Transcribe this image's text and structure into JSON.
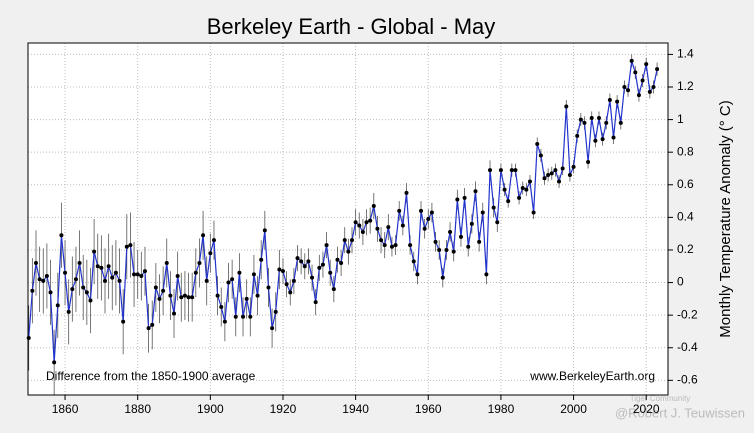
{
  "chart_data": {
    "type": "line",
    "title": "Berkeley Earth - Global - May",
    "y_label": "Monthly Temperature Anomaly (° C)",
    "annotations": [
      "Difference from the 1850-1900 average",
      "www.BerkeleyEarth.org"
    ],
    "watermark": [
      "Tiger Community",
      "@Robert J. Teuwissen"
    ],
    "x": [
      1850,
      1851,
      1852,
      1853,
      1854,
      1855,
      1856,
      1857,
      1858,
      1859,
      1860,
      1861,
      1862,
      1863,
      1864,
      1865,
      1866,
      1867,
      1868,
      1869,
      1870,
      1871,
      1872,
      1873,
      1874,
      1875,
      1876,
      1877,
      1878,
      1879,
      1880,
      1881,
      1882,
      1883,
      1884,
      1885,
      1886,
      1887,
      1888,
      1889,
      1890,
      1891,
      1892,
      1893,
      1894,
      1895,
      1896,
      1897,
      1898,
      1899,
      1900,
      1901,
      1902,
      1903,
      1904,
      1905,
      1906,
      1907,
      1908,
      1909,
      1910,
      1911,
      1912,
      1913,
      1914,
      1915,
      1916,
      1917,
      1918,
      1919,
      1920,
      1921,
      1922,
      1923,
      1924,
      1925,
      1926,
      1927,
      1928,
      1929,
      1930,
      1931,
      1932,
      1933,
      1934,
      1935,
      1936,
      1937,
      1938,
      1939,
      1940,
      1941,
      1942,
      1943,
      1944,
      1945,
      1946,
      1947,
      1948,
      1949,
      1950,
      1951,
      1952,
      1953,
      1954,
      1955,
      1956,
      1957,
      1958,
      1959,
      1960,
      1961,
      1962,
      1963,
      1964,
      1965,
      1966,
      1967,
      1968,
      1969,
      1970,
      1971,
      1972,
      1973,
      1974,
      1975,
      1976,
      1977,
      1978,
      1979,
      1980,
      1981,
      1982,
      1983,
      1984,
      1985,
      1986,
      1987,
      1988,
      1989,
      1990,
      1991,
      1992,
      1993,
      1994,
      1995,
      1996,
      1997,
      1998,
      1999,
      2000,
      2001,
      2002,
      2003,
      2004,
      2005,
      2006,
      2007,
      2008,
      2009,
      2010,
      2011,
      2012,
      2013,
      2014,
      2015,
      2016,
      2017,
      2018,
      2019,
      2020,
      2021,
      2022,
      2023
    ],
    "series": [
      {
        "color": "#2233cc",
        "values": [
          -0.34,
          -0.05,
          0.12,
          0.02,
          0.01,
          0.04,
          -0.06,
          -0.49,
          -0.14,
          0.29,
          0.06,
          -0.18,
          -0.04,
          0.02,
          0.12,
          -0.03,
          -0.06,
          -0.11,
          0.19,
          0.1,
          0.09,
          0.01,
          0.1,
          0.03,
          0.06,
          0.01,
          -0.24,
          0.22,
          0.23,
          0.05,
          0.05,
          0.04,
          0.07,
          -0.28,
          -0.26,
          -0.03,
          -0.1,
          -0.05,
          0.12,
          -0.08,
          -0.19,
          0.04,
          -0.09,
          -0.08,
          -0.09,
          -0.09,
          0.06,
          0.12,
          0.29,
          0.01,
          0.18,
          0.26,
          -0.08,
          -0.15,
          -0.24,
          0.0,
          0.02,
          -0.21,
          0.06,
          -0.21,
          -0.1,
          -0.21,
          0.05,
          -0.08,
          0.14,
          0.32,
          -0.03,
          -0.28,
          -0.18,
          0.08,
          0.07,
          -0.01,
          -0.06,
          0.01,
          0.15,
          0.13,
          0.1,
          0.13,
          0.03,
          -0.12,
          0.09,
          0.11,
          0.23,
          0.06,
          -0.04,
          0.14,
          0.12,
          0.26,
          0.19,
          0.26,
          0.37,
          0.35,
          0.31,
          0.37,
          0.38,
          0.47,
          0.33,
          0.26,
          0.23,
          0.34,
          0.22,
          0.23,
          0.44,
          0.35,
          0.55,
          0.23,
          0.13,
          0.05,
          0.44,
          0.33,
          0.39,
          0.43,
          0.25,
          0.2,
          0.03,
          0.2,
          0.31,
          0.19,
          0.51,
          0.28,
          0.52,
          0.22,
          0.36,
          0.56,
          0.25,
          0.43,
          0.05,
          0.69,
          0.46,
          0.37,
          0.69,
          0.57,
          0.5,
          0.69,
          0.69,
          0.52,
          0.58,
          0.57,
          0.62,
          0.43,
          0.85,
          0.78,
          0.64,
          0.66,
          0.67,
          0.69,
          0.62,
          0.7,
          1.08,
          0.66,
          0.71,
          0.9,
          1.0,
          0.98,
          0.74,
          1.01,
          0.87,
          1.01,
          0.88,
          0.98,
          1.12,
          0.89,
          1.11,
          0.98,
          1.2,
          1.18,
          1.36,
          1.29,
          1.15,
          1.24,
          1.34,
          1.17,
          1.2,
          1.31
        ],
        "errors": [
          0.2,
          0.2,
          0.2,
          0.2,
          0.2,
          0.2,
          0.2,
          0.2,
          0.2,
          0.2,
          0.2,
          0.2,
          0.2,
          0.2,
          0.2,
          0.2,
          0.2,
          0.2,
          0.2,
          0.2,
          0.2,
          0.2,
          0.2,
          0.2,
          0.2,
          0.2,
          0.2,
          0.2,
          0.2,
          0.2,
          0.15,
          0.15,
          0.15,
          0.15,
          0.15,
          0.15,
          0.15,
          0.15,
          0.15,
          0.15,
          0.15,
          0.15,
          0.15,
          0.15,
          0.15,
          0.15,
          0.15,
          0.15,
          0.15,
          0.15,
          0.12,
          0.12,
          0.12,
          0.12,
          0.12,
          0.12,
          0.12,
          0.12,
          0.12,
          0.12,
          0.12,
          0.12,
          0.12,
          0.12,
          0.12,
          0.12,
          0.12,
          0.12,
          0.12,
          0.12,
          0.08,
          0.08,
          0.08,
          0.08,
          0.08,
          0.08,
          0.08,
          0.08,
          0.08,
          0.08,
          0.08,
          0.08,
          0.08,
          0.08,
          0.08,
          0.08,
          0.08,
          0.08,
          0.08,
          0.08,
          0.08,
          0.08,
          0.08,
          0.08,
          0.08,
          0.08,
          0.08,
          0.08,
          0.08,
          0.08,
          0.06,
          0.06,
          0.06,
          0.06,
          0.06,
          0.06,
          0.06,
          0.06,
          0.06,
          0.06,
          0.06,
          0.06,
          0.06,
          0.06,
          0.06,
          0.06,
          0.06,
          0.06,
          0.06,
          0.06,
          0.06,
          0.06,
          0.06,
          0.06,
          0.06,
          0.06,
          0.06,
          0.06,
          0.06,
          0.06,
          0.04,
          0.04,
          0.04,
          0.04,
          0.04,
          0.04,
          0.04,
          0.04,
          0.04,
          0.04,
          0.04,
          0.04,
          0.04,
          0.04,
          0.04,
          0.04,
          0.04,
          0.04,
          0.04,
          0.04,
          0.04,
          0.04,
          0.04,
          0.04,
          0.04,
          0.04,
          0.04,
          0.04,
          0.04,
          0.04,
          0.04,
          0.04,
          0.04,
          0.04,
          0.04,
          0.04,
          0.04,
          0.04,
          0.04,
          0.04,
          0.04,
          0.04,
          0.04,
          0.04
        ]
      }
    ],
    "xlim": [
      1849.8,
      2026
    ],
    "ylim": [
      -0.69,
      1.47
    ],
    "xticks": [
      1860,
      1880,
      1900,
      1920,
      1940,
      1960,
      1980,
      2000,
      2020
    ],
    "yticks": [
      -0.6,
      -0.4,
      -0.2,
      0,
      0.2,
      0.4,
      0.6,
      0.8,
      1,
      1.2,
      1.4
    ],
    "grid": true
  }
}
